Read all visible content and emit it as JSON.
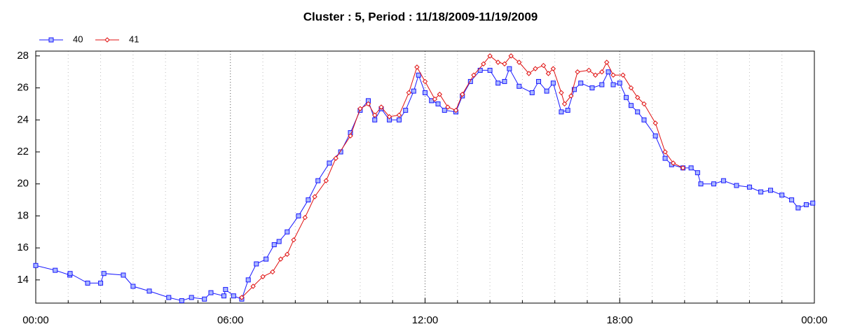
{
  "chart_data": {
    "type": "line",
    "title": "Cluster : 5, Period : 11/18/2009-11/19/2009",
    "xlim": [
      0,
      24
    ],
    "xticks": [
      {
        "value": 0,
        "label": "00:00"
      },
      {
        "value": 6,
        "label": "06:00"
      },
      {
        "value": 12,
        "label": "12:00"
      },
      {
        "value": 18,
        "label": "18:00"
      },
      {
        "value": 24,
        "label": "00:00"
      }
    ],
    "xminorticks": [
      1,
      2,
      3,
      4,
      5,
      7,
      8,
      9,
      10,
      11,
      13,
      14,
      15,
      16,
      17,
      19,
      20,
      21,
      22,
      23
    ],
    "ylim": [
      12.55,
      28.3
    ],
    "yticks": [
      14,
      16,
      18,
      20,
      22,
      24,
      26,
      28
    ],
    "grid": true,
    "legend": "top-left",
    "series": [
      {
        "name": "40",
        "color": "#1a1aff",
        "marker": "square",
        "x": [
          0,
          0.6,
          1.05,
          1.06,
          1.6,
          2.0,
          2.1,
          2.7,
          3.0,
          3.5,
          4.1,
          4.5,
          4.8,
          5.2,
          5.4,
          5.8,
          5.85,
          6.1,
          6.35,
          6.55,
          6.8,
          7.1,
          7.35,
          7.5,
          7.75,
          8.1,
          8.4,
          8.7,
          9.05,
          9.4,
          9.7,
          10.0,
          10.25,
          10.45,
          10.65,
          10.9,
          11.2,
          11.4,
          11.65,
          11.8,
          12.0,
          12.2,
          12.4,
          12.6,
          12.95,
          13.15,
          13.4,
          13.7,
          14.0,
          14.25,
          14.45,
          14.6,
          14.9,
          15.3,
          15.5,
          15.75,
          15.95,
          16.2,
          16.4,
          16.6,
          16.8,
          17.15,
          17.45,
          17.65,
          17.8,
          18.0,
          18.2,
          18.35,
          18.55,
          18.75,
          19.1,
          19.4,
          19.6,
          19.95,
          20.2,
          20.4,
          20.5,
          20.9,
          21.2,
          21.6,
          22.0,
          22.35,
          22.65,
          23.0,
          23.3,
          23.5,
          23.75,
          23.95
        ],
        "values": [
          14.9,
          14.6,
          14.3,
          14.4,
          13.8,
          13.8,
          14.4,
          14.3,
          13.6,
          13.3,
          12.9,
          12.7,
          12.9,
          12.8,
          13.2,
          13.0,
          13.4,
          13.0,
          12.8,
          14.0,
          15.0,
          15.3,
          16.2,
          16.4,
          17.0,
          18.0,
          19.0,
          20.2,
          21.3,
          22.0,
          23.2,
          24.6,
          25.2,
          24.0,
          24.7,
          24.0,
          24.0,
          24.6,
          25.8,
          26.8,
          25.7,
          25.2,
          25.0,
          24.6,
          24.5,
          25.5,
          26.4,
          27.1,
          27.1,
          26.3,
          26.4,
          27.2,
          26.1,
          25.7,
          26.4,
          25.8,
          26.3,
          24.5,
          24.6,
          25.9,
          26.3,
          26.0,
          26.2,
          27.0,
          26.2,
          26.3,
          25.4,
          24.9,
          24.5,
          24.0,
          23.0,
          21.6,
          21.2,
          21.0,
          21.0,
          20.7,
          20.0,
          20.0,
          20.2,
          19.9,
          19.8,
          19.5,
          19.6,
          19.3,
          19.0,
          18.5,
          18.7,
          18.8
        ]
      },
      {
        "name": "41",
        "color": "#e01010",
        "marker": "diamond",
        "x": [
          6.35,
          6.7,
          7.0,
          7.3,
          7.55,
          7.75,
          7.95,
          8.3,
          8.6,
          8.95,
          9.25,
          9.7,
          10.0,
          10.25,
          10.45,
          10.65,
          10.9,
          11.2,
          11.5,
          11.75,
          12.0,
          12.3,
          12.45,
          12.7,
          12.95,
          13.15,
          13.5,
          13.8,
          14.0,
          14.25,
          14.45,
          14.65,
          14.9,
          15.2,
          15.4,
          15.65,
          15.8,
          15.95,
          16.2,
          16.3,
          16.5,
          16.7,
          17.05,
          17.25,
          17.45,
          17.6,
          17.8,
          18.1,
          18.35,
          18.55,
          18.75,
          19.1,
          19.4,
          19.65,
          19.95
        ],
        "values": [
          12.9,
          13.6,
          14.2,
          14.5,
          15.3,
          15.6,
          16.5,
          17.9,
          19.2,
          20.2,
          21.6,
          23.0,
          24.7,
          25.0,
          24.3,
          24.8,
          24.2,
          24.3,
          25.7,
          27.3,
          26.4,
          25.3,
          25.6,
          24.8,
          24.6,
          25.6,
          26.8,
          27.5,
          28.0,
          27.6,
          27.5,
          28.0,
          27.6,
          26.9,
          27.2,
          27.4,
          26.9,
          27.2,
          25.7,
          25.0,
          25.5,
          27.0,
          27.1,
          26.8,
          27.0,
          27.6,
          26.8,
          26.8,
          26.0,
          25.4,
          25.0,
          23.8,
          22.0,
          21.3,
          21.0
        ]
      }
    ]
  }
}
